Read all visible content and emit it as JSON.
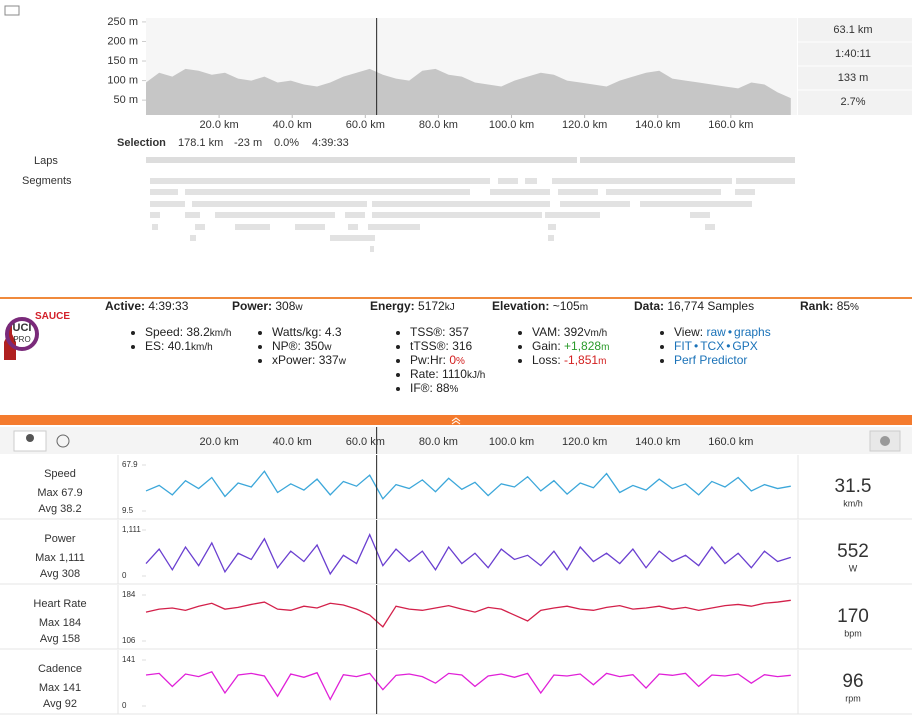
{
  "x_km": [
    0,
    3.6,
    7.2,
    10.8,
    14.4,
    18,
    21.6,
    25.2,
    28.8,
    32.4,
    36,
    39.6,
    43.2,
    46.8,
    50.4,
    54,
    57.6,
    61.2,
    64.8,
    68.4,
    72,
    75.6,
    79.2,
    82.8,
    86.4,
    90,
    93.6,
    97.2,
    100.8,
    104.4,
    108,
    111.6,
    115.2,
    118.8,
    122.4,
    126,
    129.6,
    133.2,
    136.8,
    140.4,
    144,
    147.6,
    151.2,
    154.8,
    158.4,
    162,
    165.6,
    169.2,
    172.8,
    176.4
  ],
  "elevation": {
    "type": "area",
    "color": "#c6c6c6",
    "xlim": [
      0,
      178.1
    ],
    "ylim": [
      12,
      260
    ],
    "yticks": [
      {
        "value": 250,
        "label": "250 m"
      },
      {
        "value": 200,
        "label": "200 m"
      },
      {
        "value": 150,
        "label": "150 m"
      },
      {
        "value": 100,
        "label": "100 m"
      },
      {
        "value": 50,
        "label": "50 m"
      }
    ],
    "xticks": [
      {
        "value": 20,
        "label": "20.0 km"
      },
      {
        "value": 40,
        "label": "40.0 km"
      },
      {
        "value": 60,
        "label": "60.0 km"
      },
      {
        "value": 80,
        "label": "80.0 km"
      },
      {
        "value": 100,
        "label": "100.0 km"
      },
      {
        "value": 120,
        "label": "120.0 km"
      },
      {
        "value": 140,
        "label": "140.0 km"
      },
      {
        "value": 160,
        "label": "160.0 km"
      }
    ],
    "values": [
      95,
      120,
      110,
      130,
      125,
      115,
      120,
      105,
      100,
      110,
      95,
      100,
      90,
      85,
      95,
      110,
      120,
      130,
      115,
      105,
      100,
      125,
      130,
      115,
      110,
      95,
      90,
      85,
      100,
      110,
      120,
      115,
      100,
      95,
      90,
      85,
      100,
      110,
      120,
      125,
      105,
      100,
      95,
      90,
      85,
      80,
      95,
      90,
      70,
      55
    ]
  },
  "side_stats": [
    {
      "value": 63.1,
      "label": "63.1 km"
    },
    "1:40:11",
    "133 m",
    "2.7%"
  ],
  "selection": {
    "title": "Selection",
    "items": [
      "178.1 km",
      "-23 m",
      "0.0%",
      "4:39:33"
    ]
  },
  "laps_label": "Laps",
  "segments_label": "Segments",
  "logo": "SAUCE",
  "stats": [
    {
      "title": "Active:",
      "value": "4:39:33",
      "items": [
        {
          "label": "Speed:",
          "value": "38.2",
          "unit": "km/h"
        },
        {
          "label": "ES:",
          "value": "40.1",
          "unit": "km/h"
        }
      ]
    },
    {
      "title": "Power:",
      "value": "308",
      "unit": "w",
      "items": [
        {
          "label": "Watts/kg:",
          "value": "4.3"
        },
        {
          "label": "NP®:",
          "value": "350",
          "unit": "w"
        },
        {
          "label": "xPower:",
          "value": "337",
          "unit": "w"
        }
      ]
    },
    {
      "title": "Energy:",
      "value": "5172",
      "unit": "kJ",
      "items": [
        {
          "label": "TSS®:",
          "value": "357"
        },
        {
          "label": "tTSS®:",
          "value": "316"
        },
        {
          "label": "Pw:Hr:",
          "value": "0",
          "unit": "%",
          "color": "#d32020"
        },
        {
          "label": "Rate:",
          "value": "1110",
          "unit": "kJ/h"
        },
        {
          "label": "IF®:",
          "value": "88",
          "unit": "%"
        }
      ]
    },
    {
      "title": "Elevation:",
      "value": "~105",
      "unit": "m",
      "items": [
        {
          "label": "VAM:",
          "value": "392",
          "unit": "Vm/h"
        },
        {
          "label": "Gain:",
          "value": "+1,828",
          "unit": "m",
          "color": "#2a9a2a"
        },
        {
          "label": "Loss:",
          "value": "-1,851",
          "unit": "m",
          "color": "#d32020"
        }
      ]
    },
    {
      "title": "Data:",
      "value": "16,774 Samples",
      "items": [
        {
          "label": "View:",
          "links": [
            "raw",
            "graphs"
          ]
        },
        {
          "links": [
            "FIT",
            "TCX",
            "GPX"
          ]
        },
        {
          "links": [
            "Perf Predictor"
          ]
        }
      ]
    },
    {
      "title": "Rank:",
      "value": "85",
      "unit": "%",
      "badge": [
        "UCI",
        "PRO"
      ]
    }
  ],
  "streams": [
    {
      "type": "line",
      "name": "Speed",
      "max_label": "Max 67.9",
      "avg_label": "Avg 38.2",
      "color": "#3ca7da",
      "ylim": [
        9.5,
        67.9
      ],
      "yticks": [
        9.5,
        67.9
      ],
      "current": "31.5",
      "unit": "km/h",
      "values": [
        35,
        42,
        30,
        48,
        38,
        52,
        28,
        45,
        40,
        60,
        33,
        44,
        36,
        50,
        30,
        47,
        41,
        55,
        25,
        43,
        38,
        49,
        34,
        51,
        37,
        46,
        29,
        44,
        40,
        53,
        35,
        48,
        31,
        45,
        39,
        57,
        33,
        42,
        36,
        50,
        38,
        44,
        30,
        47,
        40,
        52,
        35,
        43,
        38,
        41
      ]
    },
    {
      "type": "line",
      "name": "Power",
      "max_label": "Max 1,111",
      "avg_label": "Avg 308",
      "color": "#6a3fd0",
      "ylim": [
        0,
        1111
      ],
      "yticks": [
        0,
        {
          "value": 1111,
          "label": "1,111"
        }
      ],
      "current": "552",
      "unit": "W",
      "values": [
        300,
        650,
        150,
        700,
        250,
        800,
        100,
        550,
        400,
        900,
        200,
        600,
        350,
        750,
        50,
        500,
        300,
        1000,
        250,
        650,
        350,
        600,
        150,
        700,
        300,
        550,
        200,
        650,
        400,
        500,
        250,
        600,
        150,
        700,
        350,
        550,
        300,
        650,
        200,
        600,
        350,
        500,
        250,
        700,
        300,
        550,
        200,
        600,
        350,
        450
      ]
    },
    {
      "type": "line",
      "name": "Heart Rate",
      "max_label": "Max 184",
      "avg_label": "Avg 158",
      "color": "#d3204a",
      "ylim": [
        106,
        184
      ],
      "yticks": [
        106,
        184
      ],
      "current": "170",
      "unit": "bpm",
      "values": [
        155,
        160,
        162,
        158,
        165,
        170,
        160,
        163,
        168,
        172,
        160,
        158,
        165,
        162,
        170,
        167,
        160,
        150,
        130,
        165,
        160,
        158,
        162,
        166,
        160,
        155,
        163,
        160,
        150,
        140,
        158,
        162,
        165,
        160,
        158,
        163,
        166,
        160,
        162,
        165,
        160,
        163,
        158,
        162,
        166,
        168,
        165,
        170,
        172,
        175
      ]
    },
    {
      "type": "line",
      "name": "Cadence",
      "max_label": "Max 141",
      "avg_label": "Avg 92",
      "color": "#e020d8",
      "ylim": [
        0,
        141
      ],
      "yticks": [
        0,
        141
      ],
      "current": "96",
      "unit": "rpm",
      "values": [
        95,
        100,
        60,
        98,
        90,
        105,
        40,
        95,
        100,
        92,
        30,
        98,
        88,
        102,
        20,
        96,
        90,
        100,
        50,
        94,
        98,
        90,
        70,
        100,
        95,
        60,
        92,
        98,
        88,
        100,
        40,
        95,
        92,
        98,
        65,
        100,
        90,
        96,
        55,
        98,
        94,
        100,
        60,
        95,
        92,
        98,
        70,
        96,
        90,
        94
      ]
    }
  ]
}
